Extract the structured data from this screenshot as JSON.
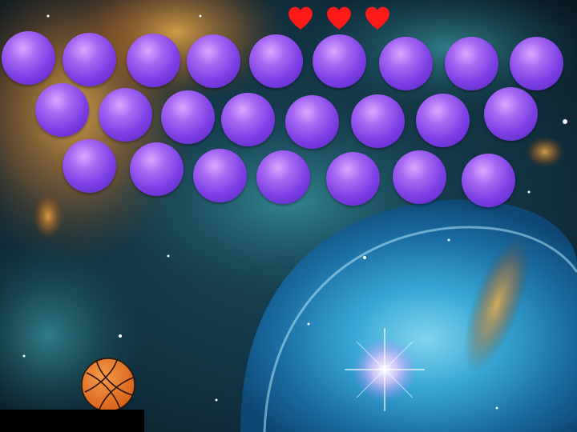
{
  "game": {
    "lives": 3,
    "bubble_color": "#8a4cf0",
    "heart_color": "#ff1a1a",
    "ball_color": "#e9731f",
    "paddle_color": "#000000",
    "ball_icon": "basketball-icon",
    "life_icon": "heart-icon"
  },
  "bubble_rows": [
    9,
    8,
    7
  ]
}
